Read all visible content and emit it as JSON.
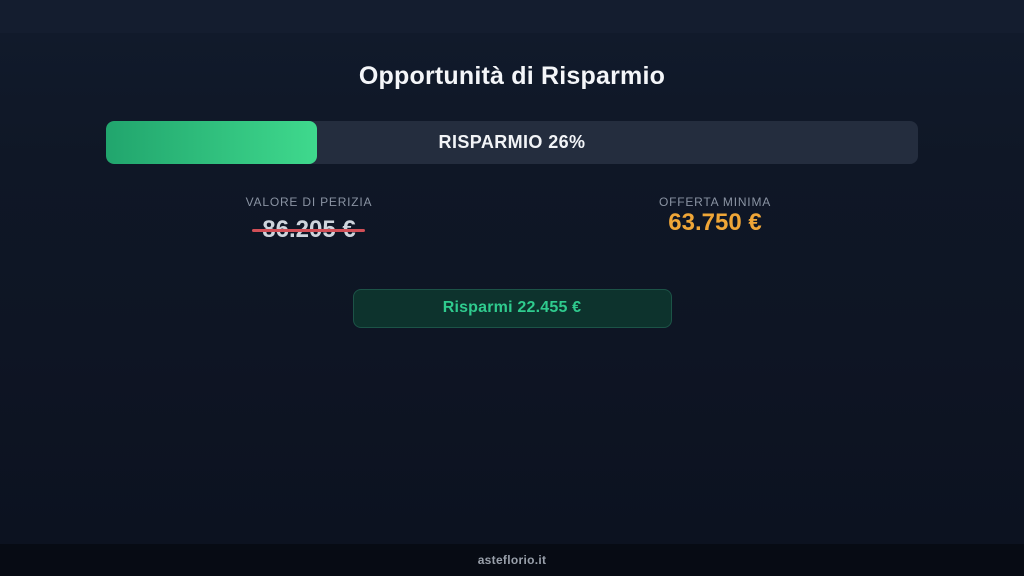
{
  "page": {
    "title": "Opportunità di Risparmio",
    "footer": "asteflorio.it"
  },
  "savings": {
    "progress_label": "RISPARMIO 26%",
    "progress_percent": 26,
    "appraisal": {
      "label": "VALORE DI PERIZIA",
      "value": "86.205 €"
    },
    "minimum_offer": {
      "label": "OFFERTA MINIMA",
      "value": "63.750 €"
    },
    "badge_label": "Risparmi 22.455 €"
  },
  "colors": {
    "background": "#0e1625",
    "top_band": "#141d2f",
    "progress_track": "#242d3e",
    "progress_fill_start": "#21a56d",
    "progress_fill_end": "#3fd98d",
    "strike_red": "#d14f57",
    "offer_orange": "#f0a637",
    "badge_background": "#0d332d",
    "badge_border": "#1c5347",
    "badge_text": "#2fcb8e",
    "footer_background": "#070b14"
  }
}
